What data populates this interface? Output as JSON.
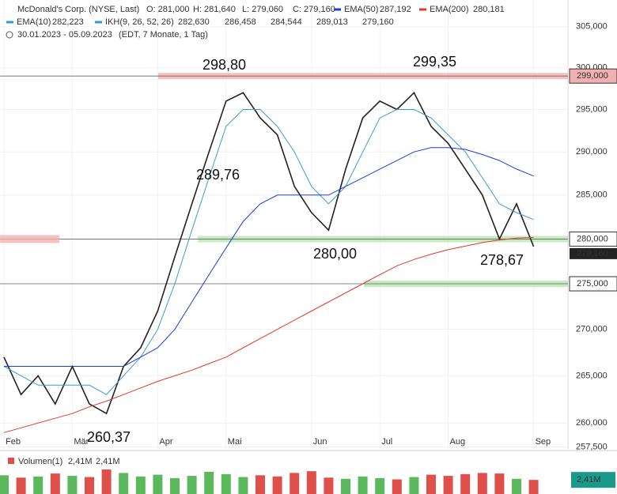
{
  "chart_data": {
    "type": "line",
    "title": "McDonald's Corp. (NYSE, Last)",
    "quote": [
      "O: 281,000",
      "H: 281,640",
      "L: 279,060",
      "C: 279,160"
    ],
    "range_text": "30.01.2023 - 05.09.2023",
    "range_note": "(EDT, 7 Monate, 1 Tag)",
    "categories": [
      "Feb",
      null,
      null,
      null,
      "Mär",
      null,
      null,
      null,
      null,
      "Apr",
      null,
      null,
      null,
      "Mai",
      null,
      null,
      null,
      null,
      "Jun",
      null,
      null,
      null,
      "Jul",
      null,
      null,
      null,
      "Aug",
      null,
      null,
      null,
      null,
      "Sep"
    ],
    "log_scale": true,
    "ylim": [
      257.3,
      308.3
    ],
    "yticks": [
      {
        "value": 257.5,
        "label": "257,500"
      },
      {
        "value": 260,
        "label": "260,000"
      },
      {
        "value": 265,
        "label": "265,000"
      },
      {
        "value": 270,
        "label": "270,000"
      },
      {
        "value": 275,
        "label": "275,000"
      },
      {
        "value": 280,
        "label": "280,000"
      },
      {
        "value": 285,
        "label": "285,000"
      },
      {
        "value": 290,
        "label": "290,000"
      },
      {
        "value": 295,
        "label": "295,000"
      },
      {
        "value": 300,
        "label": "300,000"
      },
      {
        "value": 305,
        "label": "305,000"
      }
    ],
    "series": [
      {
        "color": "#222222",
        "values": [
          267,
          263,
          265,
          262,
          266,
          262,
          261,
          266,
          268,
          272,
          278,
          284,
          290,
          296,
          297,
          294,
          292,
          286,
          283,
          281,
          288,
          294,
          296,
          295,
          297,
          293,
          291,
          288,
          285,
          280,
          284,
          279.16
        ]
      },
      {
        "name": "EMA(10)",
        "last": "282,223",
        "color": "#3a9ad9",
        "values": [
          266,
          265,
          264,
          264,
          264,
          264,
          263,
          265,
          267,
          270,
          275,
          281,
          287,
          293,
          295,
          295,
          293,
          290,
          286,
          284,
          286,
          290,
          294,
          295,
          295,
          294,
          292,
          290,
          287,
          284,
          283,
          282.2
        ]
      },
      {
        "name": "EMA(50)",
        "last": "287,192",
        "color": "#1a3fd6",
        "values": [
          266,
          266,
          266,
          266,
          266,
          266,
          266,
          266,
          267,
          268,
          270,
          273,
          276,
          279,
          282,
          284,
          285,
          285,
          285,
          285,
          286,
          287,
          288,
          289,
          290,
          290.5,
          290.5,
          290.3,
          289.7,
          289,
          288,
          287.2
        ]
      },
      {
        "name": "EMA(200)",
        "last": "280,181",
        "color": "#e0392b",
        "values": [
          259,
          259.5,
          260,
          260.5,
          261,
          261.7,
          262.3,
          263,
          263.7,
          264.4,
          265,
          265.6,
          266.3,
          267,
          268,
          269,
          270,
          271,
          272,
          273,
          274,
          275,
          276,
          277,
          277.7,
          278.3,
          278.8,
          279.2,
          279.6,
          279.9,
          280.1,
          280.18
        ]
      }
    ],
    "ikh": {
      "name": "IKH(9, 26, 52, 26)",
      "labels": [
        "282,630",
        "286,458",
        "284,544",
        "289,013",
        "279,160"
      ],
      "colors": [
        "#3a9ad9",
        "#555555",
        "#8e3d8e",
        "#5a8a4a",
        "#e0a020"
      ]
    },
    "levels": [
      {
        "value": 299,
        "label": "299,000",
        "color": "#f2b0b0"
      },
      {
        "value": 280,
        "label": "280,000",
        "color": "#b8e6b0"
      },
      {
        "value": 275,
        "label": "275,000",
        "color": "#b8e6b0"
      }
    ],
    "last_price": {
      "value": 279.16,
      "label": "279,160"
    },
    "annotations": [
      "298,80",
      "299,35",
      "289,76",
      "280,00",
      "278,67",
      "260,37"
    ],
    "volume": {
      "name": "Volumen(1)",
      "labels": [
        "2,41M",
        "2,41M"
      ],
      "ylim": [
        0,
        5
      ],
      "last": {
        "value": 2.41,
        "label": "2,41M"
      },
      "values": [
        3.2,
        2.8,
        3.0,
        3.5,
        3.1,
        2.9,
        4.2,
        3.6,
        3.0,
        3.3,
        2.7,
        3.1,
        3.8,
        3.4,
        2.9,
        3.2,
        3.0,
        3.6,
        3.9,
        2.8,
        2.6,
        3.0,
        2.7,
        2.5,
        2.9,
        3.3,
        3.1,
        3.4,
        3.6,
        3.5,
        2.6,
        2.41
      ]
    }
  }
}
